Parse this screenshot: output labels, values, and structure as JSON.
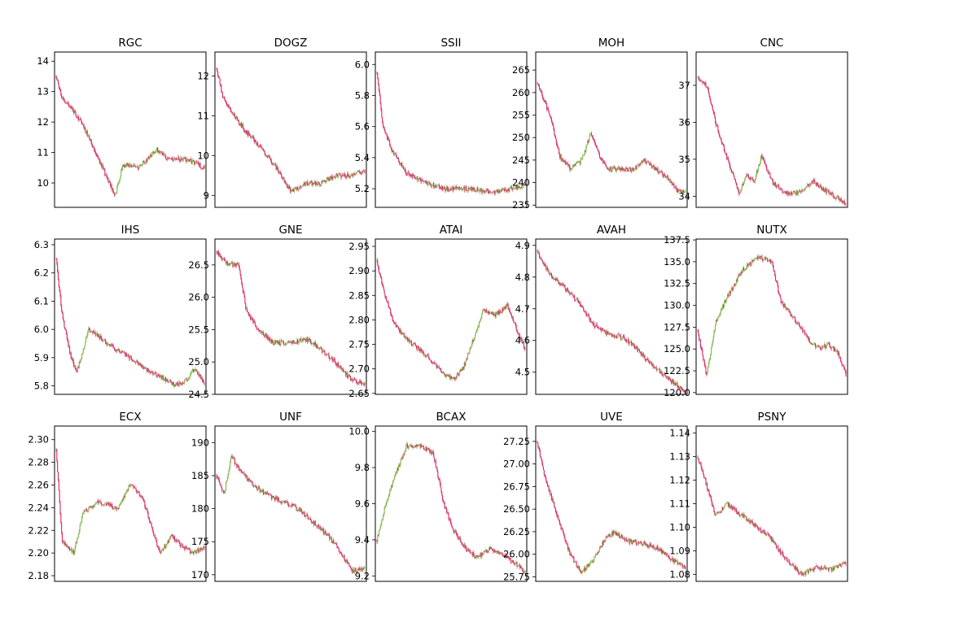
{
  "chart_data": [
    {
      "type": "candlestick",
      "title": "RGC",
      "yticks": [
        10,
        11,
        12,
        13,
        14
      ],
      "ylim": [
        9.2,
        14.3
      ],
      "up_color": "#7cb342",
      "down_color": "#d81b60",
      "keypoints": [
        [
          0,
          13.5
        ],
        [
          0.04,
          12.8
        ],
        [
          0.1,
          12.5
        ],
        [
          0.18,
          11.9
        ],
        [
          0.25,
          11.2
        ],
        [
          0.33,
          10.3
        ],
        [
          0.4,
          9.6
        ],
        [
          0.45,
          10.6
        ],
        [
          0.55,
          10.5
        ],
        [
          0.62,
          10.8
        ],
        [
          0.68,
          11.1
        ],
        [
          0.75,
          10.8
        ],
        [
          0.85,
          10.8
        ],
        [
          0.92,
          10.7
        ],
        [
          1,
          10.5
        ]
      ]
    },
    {
      "type": "candlestick",
      "title": "DOGZ",
      "yticks": [
        9,
        10,
        11,
        12
      ],
      "ylim": [
        8.7,
        12.6
      ],
      "up_color": "#7cb342",
      "down_color": "#d81b60",
      "keypoints": [
        [
          0,
          12.2
        ],
        [
          0.04,
          11.5
        ],
        [
          0.1,
          11.1
        ],
        [
          0.2,
          10.6
        ],
        [
          0.3,
          10.2
        ],
        [
          0.4,
          9.7
        ],
        [
          0.5,
          9.1
        ],
        [
          0.6,
          9.3
        ],
        [
          0.7,
          9.3
        ],
        [
          0.8,
          9.5
        ],
        [
          0.9,
          9.5
        ],
        [
          1,
          9.6
        ]
      ]
    },
    {
      "type": "candlestick",
      "title": "SSII",
      "yticks": [
        5.2,
        5.4,
        5.6,
        5.8,
        6.0
      ],
      "ylim": [
        5.08,
        6.08
      ],
      "up_color": "#7cb342",
      "down_color": "#d81b60",
      "keypoints": [
        [
          0,
          5.95
        ],
        [
          0.04,
          5.6
        ],
        [
          0.1,
          5.45
        ],
        [
          0.2,
          5.3
        ],
        [
          0.3,
          5.25
        ],
        [
          0.45,
          5.2
        ],
        [
          0.6,
          5.2
        ],
        [
          0.8,
          5.18
        ],
        [
          0.9,
          5.2
        ],
        [
          1,
          5.22
        ]
      ]
    },
    {
      "type": "candlestick",
      "title": "MOH",
      "yticks": [
        235,
        240,
        245,
        250,
        255,
        260,
        265
      ],
      "ylim": [
        234.5,
        269
      ],
      "up_color": "#7cb342",
      "down_color": "#d81b60",
      "keypoints": [
        [
          0,
          262
        ],
        [
          0.05,
          258
        ],
        [
          0.1,
          253
        ],
        [
          0.15,
          246
        ],
        [
          0.22,
          243
        ],
        [
          0.3,
          245
        ],
        [
          0.36,
          251
        ],
        [
          0.42,
          246
        ],
        [
          0.48,
          243
        ],
        [
          0.55,
          243
        ],
        [
          0.65,
          243
        ],
        [
          0.72,
          245
        ],
        [
          0.8,
          243
        ],
        [
          0.88,
          241
        ],
        [
          0.95,
          238
        ],
        [
          1,
          238
        ]
      ]
    },
    {
      "type": "candlestick",
      "title": "CNC",
      "yticks": [
        34,
        35,
        36,
        37
      ],
      "ylim": [
        33.7,
        37.9
      ],
      "up_color": "#7cb342",
      "down_color": "#d81b60",
      "keypoints": [
        [
          0,
          37.2
        ],
        [
          0.06,
          37.0
        ],
        [
          0.12,
          36.0
        ],
        [
          0.2,
          35.0
        ],
        [
          0.28,
          34.1
        ],
        [
          0.33,
          34.6
        ],
        [
          0.38,
          34.4
        ],
        [
          0.43,
          35.1
        ],
        [
          0.5,
          34.4
        ],
        [
          0.58,
          34.1
        ],
        [
          0.68,
          34.1
        ],
        [
          0.78,
          34.4
        ],
        [
          0.88,
          34.1
        ],
        [
          1,
          33.8
        ]
      ]
    },
    {
      "type": "candlestick",
      "title": "IHS",
      "yticks": [
        5.8,
        5.9,
        6.0,
        6.1,
        6.2,
        6.3
      ],
      "ylim": [
        5.77,
        6.32
      ],
      "up_color": "#7cb342",
      "down_color": "#d81b60",
      "keypoints": [
        [
          0,
          6.25
        ],
        [
          0.04,
          6.05
        ],
        [
          0.1,
          5.9
        ],
        [
          0.14,
          5.85
        ],
        [
          0.22,
          6.0
        ],
        [
          0.3,
          5.97
        ],
        [
          0.4,
          5.93
        ],
        [
          0.5,
          5.9
        ],
        [
          0.6,
          5.86
        ],
        [
          0.72,
          5.83
        ],
        [
          0.8,
          5.8
        ],
        [
          0.88,
          5.82
        ],
        [
          0.93,
          5.86
        ],
        [
          1,
          5.81
        ]
      ]
    },
    {
      "type": "candlestick",
      "title": "GNE",
      "yticks": [
        24.5,
        25.0,
        25.5,
        26.0,
        26.5
      ],
      "ylim": [
        24.5,
        26.9
      ],
      "up_color": "#7cb342",
      "down_color": "#d81b60",
      "keypoints": [
        [
          0,
          26.7
        ],
        [
          0.08,
          26.5
        ],
        [
          0.15,
          26.5
        ],
        [
          0.2,
          25.8
        ],
        [
          0.28,
          25.5
        ],
        [
          0.38,
          25.3
        ],
        [
          0.5,
          25.3
        ],
        [
          0.62,
          25.35
        ],
        [
          0.7,
          25.2
        ],
        [
          0.8,
          25.0
        ],
        [
          0.9,
          24.75
        ],
        [
          1,
          24.65
        ]
      ]
    },
    {
      "type": "candlestick",
      "title": "ATAI",
      "yticks": [
        2.65,
        2.7,
        2.75,
        2.8,
        2.85,
        2.9,
        2.95
      ],
      "ylim": [
        2.648,
        2.965
      ],
      "up_color": "#7cb342",
      "down_color": "#d81b60",
      "keypoints": [
        [
          0,
          2.92
        ],
        [
          0.05,
          2.85
        ],
        [
          0.12,
          2.79
        ],
        [
          0.2,
          2.76
        ],
        [
          0.28,
          2.74
        ],
        [
          0.36,
          2.72
        ],
        [
          0.45,
          2.69
        ],
        [
          0.52,
          2.68
        ],
        [
          0.58,
          2.7
        ],
        [
          0.65,
          2.76
        ],
        [
          0.72,
          2.82
        ],
        [
          0.8,
          2.81
        ],
        [
          0.88,
          2.83
        ],
        [
          0.93,
          2.79
        ],
        [
          1,
          2.74
        ]
      ]
    },
    {
      "type": "candlestick",
      "title": "AVAH",
      "yticks": [
        4.5,
        4.6,
        4.7,
        4.8,
        4.9
      ],
      "ylim": [
        4.43,
        4.92
      ],
      "up_color": "#7cb342",
      "down_color": "#d81b60",
      "keypoints": [
        [
          0,
          4.88
        ],
        [
          0.08,
          4.81
        ],
        [
          0.18,
          4.77
        ],
        [
          0.28,
          4.72
        ],
        [
          0.38,
          4.65
        ],
        [
          0.48,
          4.62
        ],
        [
          0.58,
          4.61
        ],
        [
          0.68,
          4.57
        ],
        [
          0.78,
          4.52
        ],
        [
          0.88,
          4.48
        ],
        [
          1,
          4.44
        ]
      ]
    },
    {
      "type": "candlestick",
      "title": "NUTX",
      "yticks": [
        120.0,
        122.5,
        125.0,
        127.5,
        130.0,
        132.5,
        135.0,
        137.5
      ],
      "ylim": [
        119.8,
        137.6
      ],
      "up_color": "#7cb342",
      "down_color": "#d81b60",
      "keypoints": [
        [
          0,
          127
        ],
        [
          0.06,
          122
        ],
        [
          0.12,
          128
        ],
        [
          0.2,
          131
        ],
        [
          0.3,
          134
        ],
        [
          0.4,
          135.5
        ],
        [
          0.5,
          135
        ],
        [
          0.56,
          130.5
        ],
        [
          0.65,
          128.5
        ],
        [
          0.75,
          126
        ],
        [
          0.82,
          125
        ],
        [
          0.88,
          125.5
        ],
        [
          0.95,
          124.5
        ],
        [
          1,
          122
        ]
      ]
    },
    {
      "type": "candlestick",
      "title": "ECX",
      "yticks": [
        2.18,
        2.2,
        2.22,
        2.24,
        2.26,
        2.28,
        2.3
      ],
      "ylim": [
        2.175,
        2.312
      ],
      "up_color": "#7cb342",
      "down_color": "#d81b60",
      "keypoints": [
        [
          0,
          2.29
        ],
        [
          0.04,
          2.21
        ],
        [
          0.12,
          2.2
        ],
        [
          0.18,
          2.235
        ],
        [
          0.28,
          2.245
        ],
        [
          0.42,
          2.24
        ],
        [
          0.5,
          2.26
        ],
        [
          0.58,
          2.25
        ],
        [
          0.64,
          2.225
        ],
        [
          0.7,
          2.2
        ],
        [
          0.78,
          2.215
        ],
        [
          0.86,
          2.205
        ],
        [
          0.92,
          2.2
        ],
        [
          1,
          2.205
        ]
      ]
    },
    {
      "type": "candlestick",
      "title": "UNF",
      "yticks": [
        170,
        175,
        180,
        185,
        190
      ],
      "ylim": [
        169,
        192.5
      ],
      "up_color": "#7cb342",
      "down_color": "#d81b60",
      "keypoints": [
        [
          0,
          185
        ],
        [
          0.05,
          182
        ],
        [
          0.1,
          188
        ],
        [
          0.15,
          186
        ],
        [
          0.25,
          183.5
        ],
        [
          0.35,
          182
        ],
        [
          0.45,
          181
        ],
        [
          0.55,
          180
        ],
        [
          0.65,
          178
        ],
        [
          0.75,
          176
        ],
        [
          0.85,
          173
        ],
        [
          0.92,
          170.5
        ],
        [
          1,
          171
        ]
      ]
    },
    {
      "type": "candlestick",
      "title": "BCAX",
      "yticks": [
        9.2,
        9.4,
        9.6,
        9.8,
        10.0
      ],
      "ylim": [
        9.17,
        10.03
      ],
      "up_color": "#7cb342",
      "down_color": "#d81b60",
      "keypoints": [
        [
          0,
          9.4
        ],
        [
          0.06,
          9.6
        ],
        [
          0.12,
          9.75
        ],
        [
          0.2,
          9.92
        ],
        [
          0.3,
          9.92
        ],
        [
          0.38,
          9.88
        ],
        [
          0.45,
          9.6
        ],
        [
          0.52,
          9.45
        ],
        [
          0.6,
          9.35
        ],
        [
          0.68,
          9.3
        ],
        [
          0.76,
          9.35
        ],
        [
          0.84,
          9.32
        ],
        [
          0.92,
          9.28
        ],
        [
          1,
          9.22
        ]
      ]
    },
    {
      "type": "candlestick",
      "title": "UVE",
      "yticks": [
        25.75,
        26.0,
        26.25,
        26.5,
        26.75,
        27.0,
        27.25
      ],
      "ylim": [
        25.7,
        27.42
      ],
      "up_color": "#7cb342",
      "down_color": "#d81b60",
      "keypoints": [
        [
          0,
          27.25
        ],
        [
          0.05,
          26.85
        ],
        [
          0.12,
          26.5
        ],
        [
          0.22,
          26.0
        ],
        [
          0.3,
          25.8
        ],
        [
          0.38,
          25.95
        ],
        [
          0.45,
          26.15
        ],
        [
          0.52,
          26.25
        ],
        [
          0.6,
          26.15
        ],
        [
          0.7,
          26.12
        ],
        [
          0.8,
          26.08
        ],
        [
          0.9,
          25.95
        ],
        [
          1,
          25.85
        ]
      ]
    },
    {
      "type": "candlestick",
      "title": "PSNY",
      "yticks": [
        1.08,
        1.09,
        1.1,
        1.11,
        1.12,
        1.13,
        1.14
      ],
      "ylim": [
        1.077,
        1.143
      ],
      "up_color": "#7cb342",
      "down_color": "#d81b60",
      "keypoints": [
        [
          0,
          1.13
        ],
        [
          0.05,
          1.12
        ],
        [
          0.12,
          1.105
        ],
        [
          0.2,
          1.11
        ],
        [
          0.3,
          1.105
        ],
        [
          0.4,
          1.1
        ],
        [
          0.5,
          1.095
        ],
        [
          0.55,
          1.09
        ],
        [
          0.62,
          1.085
        ],
        [
          0.7,
          1.08
        ],
        [
          0.8,
          1.083
        ],
        [
          0.9,
          1.082
        ],
        [
          1,
          1.085
        ]
      ]
    }
  ]
}
